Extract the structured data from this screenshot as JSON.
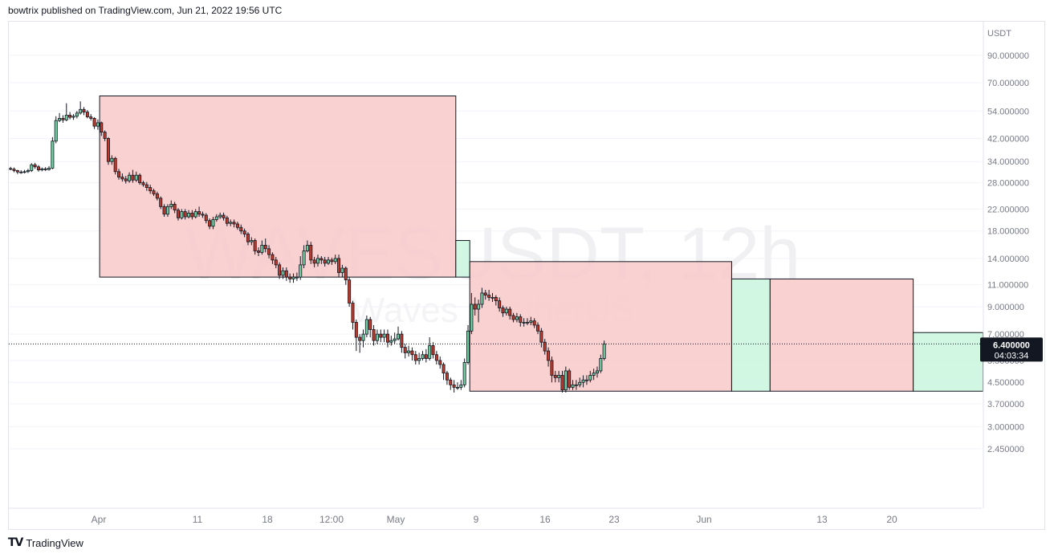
{
  "header": {
    "text": "bowtrix published on TradingView.com, Jun 21, 2022 19:56 UTC"
  },
  "footer": {
    "logo": "TV",
    "brand": "TradingView"
  },
  "watermark": {
    "symbol": "WAVESUSDT, 12h",
    "name": "Waves / TetherUS"
  },
  "colors": {
    "up": "#26a69a",
    "up_fill": "#6fcfa0",
    "down": "#7a1f2b",
    "down_fill": "#c0392b",
    "red_box": "#f8c9c9",
    "green_box": "#c9f5dd",
    "grid": "#f0f3fa",
    "axis_text": "#787b86"
  },
  "chart_data": {
    "type": "candlestick",
    "quote_currency": "USDT",
    "y_scale": "log",
    "y_ticks": [
      90,
      70,
      54,
      42,
      34,
      28,
      22,
      18,
      14,
      11,
      9,
      7,
      5.5,
      4.5,
      3.7,
      3.0,
      2.45
    ],
    "y_tick_labels": [
      "90.000000",
      "70.000000",
      "54.000000",
      "42.000000",
      "34.000000",
      "28.000000",
      "22.000000",
      "18.000000",
      "14.000000",
      "11.000000",
      "9.000000",
      "7.000000",
      "5.500000",
      "4.500000",
      "3.700000",
      "3.000000",
      "2.450000"
    ],
    "x_labels": [
      "Apr",
      "11",
      "18",
      "12:00",
      "May",
      "9",
      "16",
      "23",
      "Jun",
      "13",
      "20"
    ],
    "x_range_dates": [
      "2022-03-28",
      "2022-06-22"
    ],
    "last_price": "6.400000",
    "countdown": "04:03:34",
    "last_price_value": 6.4,
    "candles": [
      [
        31.9,
        31.7,
        32.4,
        31.4
      ],
      [
        31.7,
        31.3,
        32.2,
        30.8
      ],
      [
        31.3,
        30.9,
        31.5,
        30.3
      ],
      [
        30.9,
        30.9,
        31.4,
        30.4
      ],
      [
        30.9,
        31.0,
        31.5,
        30.5
      ],
      [
        31.0,
        31.3,
        31.8,
        30.6
      ],
      [
        31.3,
        33.0,
        33.5,
        30.9
      ],
      [
        33.0,
        32.4,
        33.6,
        31.8
      ],
      [
        32.4,
        31.5,
        32.9,
        31.0
      ],
      [
        31.5,
        31.8,
        32.2,
        31.1
      ],
      [
        31.8,
        31.6,
        32.3,
        31.2
      ],
      [
        31.6,
        32.0,
        32.6,
        31.3
      ],
      [
        32.0,
        41.0,
        42.5,
        31.7
      ],
      [
        41.0,
        49.5,
        51.5,
        40.2
      ],
      [
        49.5,
        50.5,
        53.0,
        48.8
      ],
      [
        50.5,
        49.8,
        52.0,
        48.5
      ],
      [
        49.8,
        52.0,
        58.0,
        49.2
      ],
      [
        52.0,
        51.0,
        53.5,
        50.0
      ],
      [
        51.0,
        51.5,
        52.5,
        49.8
      ],
      [
        51.5,
        53.0,
        54.0,
        50.5
      ],
      [
        53.0,
        54.8,
        59.0,
        52.3
      ],
      [
        54.8,
        53.5,
        56.0,
        52.0
      ],
      [
        53.5,
        51.2,
        54.5,
        50.5
      ],
      [
        51.2,
        50.5,
        52.5,
        49.5
      ],
      [
        50.5,
        47.0,
        51.0,
        45.8
      ],
      [
        47.0,
        48.5,
        50.0,
        45.5
      ],
      [
        48.5,
        44.5,
        49.0,
        43.0
      ],
      [
        44.5,
        42.0,
        45.2,
        41.0
      ],
      [
        42.0,
        34.0,
        42.5,
        33.0
      ],
      [
        34.0,
        35.0,
        36.0,
        33.0
      ],
      [
        35.0,
        31.0,
        35.5,
        30.2
      ],
      [
        31.0,
        29.5,
        31.8,
        28.8
      ],
      [
        29.5,
        29.0,
        30.5,
        28.3
      ],
      [
        29.0,
        28.5,
        29.8,
        27.8
      ],
      [
        28.5,
        30.0,
        30.8,
        28.0
      ],
      [
        30.0,
        28.7,
        31.5,
        28.0
      ],
      [
        28.7,
        30.0,
        31.0,
        28.2
      ],
      [
        30.0,
        28.0,
        30.5,
        27.5
      ],
      [
        28.0,
        27.5,
        28.5,
        27.0
      ],
      [
        27.5,
        26.8,
        28.2,
        26.0
      ],
      [
        26.8,
        26.0,
        27.5,
        25.3
      ],
      [
        26.0,
        25.3,
        26.5,
        24.8
      ],
      [
        25.3,
        24.3,
        25.8,
        23.8
      ],
      [
        24.3,
        22.5,
        24.7,
        22.0
      ],
      [
        22.5,
        21.0,
        23.0,
        20.5
      ],
      [
        21.0,
        22.5,
        23.0,
        20.5
      ],
      [
        22.5,
        23.0,
        23.8,
        22.0
      ],
      [
        23.0,
        21.8,
        23.5,
        21.2
      ],
      [
        21.8,
        20.3,
        22.2,
        19.8
      ],
      [
        20.3,
        21.5,
        22.0,
        20.0
      ],
      [
        21.5,
        20.5,
        22.0,
        20.0
      ],
      [
        20.5,
        21.2,
        21.8,
        20.2
      ],
      [
        21.2,
        20.5,
        21.8,
        20.0
      ],
      [
        20.5,
        21.5,
        22.0,
        20.2
      ],
      [
        21.5,
        21.0,
        22.5,
        20.5
      ],
      [
        21.0,
        20.8,
        21.5,
        20.3
      ],
      [
        20.8,
        19.8,
        21.2,
        19.3
      ],
      [
        19.8,
        18.8,
        20.2,
        18.3
      ],
      [
        18.8,
        20.0,
        20.5,
        18.3
      ],
      [
        20.0,
        20.5,
        21.0,
        19.6
      ],
      [
        20.5,
        20.8,
        21.3,
        20.1
      ],
      [
        20.8,
        20.3,
        21.3,
        19.8
      ],
      [
        20.3,
        19.3,
        20.7,
        18.8
      ],
      [
        19.3,
        19.5,
        20.0,
        18.8
      ],
      [
        19.5,
        19.2,
        20.0,
        18.6
      ],
      [
        19.2,
        18.6,
        19.6,
        18.2
      ],
      [
        18.6,
        18.0,
        19.1,
        17.5
      ],
      [
        18.0,
        17.5,
        18.4,
        17.0
      ],
      [
        17.5,
        16.3,
        17.8,
        15.8
      ],
      [
        16.3,
        16.5,
        17.0,
        15.8
      ],
      [
        16.5,
        15.0,
        16.8,
        14.5
      ],
      [
        15.0,
        14.8,
        15.5,
        14.3
      ],
      [
        14.8,
        15.8,
        16.5,
        14.5
      ],
      [
        15.8,
        15.3,
        16.8,
        14.8
      ],
      [
        15.3,
        14.5,
        15.8,
        14.0
      ],
      [
        14.5,
        13.8,
        14.8,
        13.3
      ],
      [
        13.8,
        13.2,
        14.2,
        12.8
      ],
      [
        13.2,
        12.0,
        13.5,
        11.6
      ],
      [
        12.0,
        12.5,
        12.9,
        11.6
      ],
      [
        12.5,
        11.8,
        12.9,
        11.4
      ],
      [
        11.8,
        11.6,
        12.2,
        11.2
      ],
      [
        11.6,
        11.8,
        12.2,
        11.2
      ],
      [
        11.8,
        11.8,
        12.3,
        11.4
      ],
      [
        11.8,
        13.2,
        14.3,
        11.5
      ],
      [
        13.2,
        15.0,
        15.8,
        12.8
      ],
      [
        15.0,
        15.8,
        16.5,
        14.8
      ],
      [
        15.8,
        13.8,
        16.3,
        13.3
      ],
      [
        13.8,
        13.4,
        14.2,
        12.9
      ],
      [
        13.4,
        14.0,
        14.5,
        13.0
      ],
      [
        14.0,
        13.8,
        14.3,
        13.3
      ],
      [
        13.8,
        13.4,
        14.2,
        13.0
      ],
      [
        13.4,
        13.8,
        14.2,
        13.2
      ],
      [
        13.8,
        13.6,
        14.1,
        13.2
      ],
      [
        13.6,
        14.0,
        14.5,
        13.3
      ],
      [
        14.0,
        12.3,
        14.5,
        11.8
      ],
      [
        12.3,
        12.8,
        13.2,
        11.8
      ],
      [
        12.8,
        11.5,
        13.0,
        11.0
      ],
      [
        11.5,
        9.3,
        11.8,
        9.0
      ],
      [
        9.3,
        7.8,
        9.5,
        7.3
      ],
      [
        7.8,
        6.8,
        8.0,
        6.0
      ],
      [
        6.8,
        6.6,
        7.0,
        5.9
      ],
      [
        6.6,
        7.0,
        7.3,
        6.2
      ],
      [
        7.0,
        8.0,
        8.3,
        6.8
      ],
      [
        8.0,
        7.3,
        8.2,
        6.8
      ],
      [
        7.3,
        6.6,
        7.6,
        6.3
      ],
      [
        6.6,
        7.0,
        7.3,
        6.4
      ],
      [
        7.0,
        6.8,
        7.3,
        6.5
      ],
      [
        6.8,
        7.0,
        7.3,
        6.5
      ],
      [
        7.0,
        6.5,
        7.3,
        6.2
      ],
      [
        6.5,
        6.6,
        6.9,
        6.3
      ],
      [
        6.6,
        6.7,
        7.1,
        6.4
      ],
      [
        6.7,
        7.0,
        7.5,
        6.6
      ],
      [
        7.0,
        6.2,
        7.2,
        5.9
      ],
      [
        6.2,
        5.9,
        6.4,
        5.6
      ],
      [
        5.9,
        6.0,
        6.3,
        5.7
      ],
      [
        6.0,
        5.8,
        6.2,
        5.5
      ],
      [
        5.8,
        5.5,
        6.0,
        5.3
      ],
      [
        5.5,
        5.6,
        5.9,
        5.3
      ],
      [
        5.6,
        5.8,
        6.0,
        5.5
      ],
      [
        5.8,
        5.6,
        6.1,
        5.4
      ],
      [
        5.6,
        6.3,
        6.8,
        5.5
      ],
      [
        6.3,
        5.8,
        6.5,
        5.6
      ],
      [
        5.8,
        5.5,
        6.0,
        5.3
      ],
      [
        5.5,
        5.3,
        5.7,
        5.1
      ],
      [
        5.3,
        4.9,
        5.4,
        4.6
      ],
      [
        4.9,
        4.6,
        5.0,
        4.4
      ],
      [
        4.6,
        4.4,
        4.7,
        4.2
      ],
      [
        4.4,
        4.3,
        4.6,
        4.1
      ],
      [
        4.3,
        4.3,
        4.5,
        4.2
      ],
      [
        4.3,
        4.4,
        4.6,
        4.2
      ],
      [
        4.4,
        5.4,
        5.6,
        4.3
      ],
      [
        5.4,
        7.2,
        7.6,
        5.3
      ],
      [
        7.2,
        9.2,
        10.2,
        7.0
      ],
      [
        9.2,
        8.8,
        9.8,
        8.3
      ],
      [
        8.8,
        9.2,
        9.6,
        7.8
      ],
      [
        9.2,
        10.2,
        10.7,
        8.9
      ],
      [
        10.2,
        10.0,
        10.5,
        9.6
      ],
      [
        10.0,
        9.8,
        10.5,
        9.5
      ],
      [
        9.8,
        9.8,
        10.2,
        9.4
      ],
      [
        9.8,
        9.5,
        10.0,
        9.1
      ],
      [
        9.5,
        8.9,
        9.8,
        8.6
      ],
      [
        8.9,
        8.5,
        9.1,
        8.2
      ],
      [
        8.5,
        8.8,
        9.0,
        8.3
      ],
      [
        8.8,
        8.3,
        9.0,
        8.0
      ],
      [
        8.3,
        8.0,
        8.5,
        7.8
      ],
      [
        8.0,
        8.2,
        8.5,
        7.8
      ],
      [
        8.2,
        7.8,
        8.4,
        7.5
      ],
      [
        7.8,
        7.8,
        8.1,
        7.5
      ],
      [
        7.8,
        7.8,
        8.1,
        7.6
      ],
      [
        7.8,
        7.9,
        8.2,
        7.6
      ],
      [
        7.9,
        7.6,
        8.1,
        7.4
      ],
      [
        7.6,
        7.2,
        7.8,
        7.0
      ],
      [
        7.2,
        6.5,
        7.4,
        6.2
      ],
      [
        6.5,
        6.0,
        6.7,
        5.8
      ],
      [
        6.0,
        5.5,
        6.2,
        5.2
      ],
      [
        5.5,
        4.8,
        5.7,
        4.5
      ],
      [
        4.8,
        4.7,
        5.0,
        4.5
      ],
      [
        4.7,
        4.8,
        5.0,
        4.5
      ],
      [
        4.8,
        4.2,
        5.0,
        4.1
      ],
      [
        4.2,
        5.0,
        5.2,
        4.1
      ],
      [
        5.0,
        4.3,
        5.1,
        4.2
      ],
      [
        4.3,
        4.4,
        4.6,
        4.2
      ],
      [
        4.4,
        4.4,
        4.6,
        4.2
      ],
      [
        4.4,
        4.5,
        4.7,
        4.3
      ],
      [
        4.5,
        4.6,
        4.8,
        4.3
      ],
      [
        4.6,
        4.6,
        4.8,
        4.4
      ],
      [
        4.6,
        4.8,
        5.0,
        4.5
      ],
      [
        4.8,
        4.9,
        5.1,
        4.6
      ],
      [
        4.9,
        5.0,
        5.2,
        4.7
      ],
      [
        5.0,
        5.6,
        5.8,
        4.9
      ],
      [
        5.6,
        6.4,
        6.6,
        5.5
      ]
    ],
    "boxes": [
      {
        "color": "red",
        "from_index": 26,
        "to_index": 128,
        "top": 62,
        "bottom": 11.8
      },
      {
        "color": "green",
        "from_index": 128,
        "to_index": 132,
        "top": 16.5,
        "bottom": 11.8
      },
      {
        "color": "red",
        "from_index": 132,
        "to_index": 207,
        "top": 13.6,
        "bottom": 4.15
      },
      {
        "color": "green",
        "from_index": 207,
        "to_index": 218,
        "top": 11.6,
        "bottom": 4.15
      },
      {
        "color": "red",
        "from_index": 218,
        "to_index": 259,
        "top": 11.6,
        "bottom": 4.15
      },
      {
        "color": "green",
        "from_index": 259,
        "to_index": 279,
        "top": 7.1,
        "bottom": 4.15
      }
    ]
  }
}
